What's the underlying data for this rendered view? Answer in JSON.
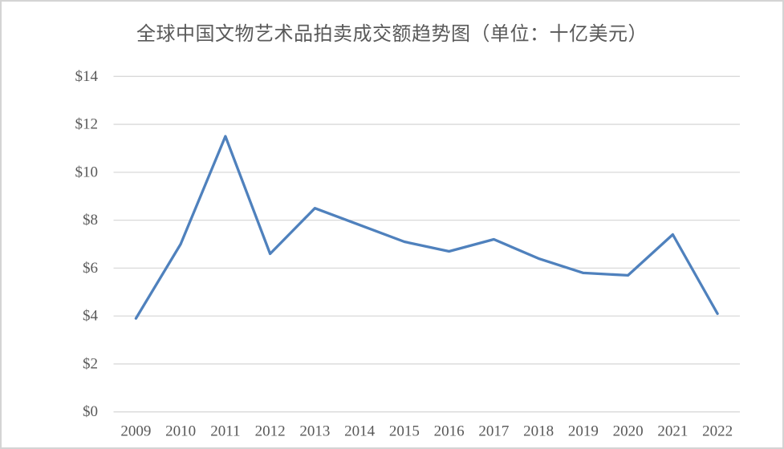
{
  "chart_data": {
    "type": "line",
    "title": "全球中国文物艺术品拍卖成交额趋势图（单位：十亿美元）",
    "categories": [
      "2009",
      "2010",
      "2011",
      "2012",
      "2013",
      "2014",
      "2015",
      "2016",
      "2017",
      "2018",
      "2019",
      "2020",
      "2021",
      "2022"
    ],
    "series": [
      {
        "values": [
          3.9,
          7.0,
          11.5,
          6.6,
          8.5,
          7.8,
          7.1,
          6.7,
          7.2,
          6.4,
          5.8,
          5.7,
          7.4,
          4.1
        ]
      }
    ],
    "xlabel": "",
    "ylabel": "",
    "y_tick_labels": [
      "$0",
      "$2",
      "$4",
      "$6",
      "$8",
      "$10",
      "$12",
      "$14"
    ],
    "ylim": [
      0,
      14
    ],
    "y_step": 2,
    "grid": true,
    "legend_position": "none",
    "colors": {
      "line": "#4F81BD",
      "gridline": "#D9D9D9",
      "axis_text": "#595959",
      "title_text": "#595959",
      "background": "#ffffff",
      "frame_border": "#d4d4d4"
    }
  }
}
